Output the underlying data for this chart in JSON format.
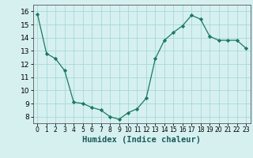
{
  "x": [
    0,
    1,
    2,
    3,
    4,
    5,
    6,
    7,
    8,
    9,
    10,
    11,
    12,
    13,
    14,
    15,
    16,
    17,
    18,
    19,
    20,
    21,
    22,
    23
  ],
  "y": [
    15.8,
    12.8,
    12.4,
    11.5,
    9.1,
    9.0,
    8.7,
    8.5,
    8.0,
    7.8,
    8.3,
    8.6,
    9.4,
    12.4,
    13.8,
    14.4,
    14.9,
    15.7,
    15.4,
    14.1,
    13.8,
    13.8,
    13.8,
    13.2
  ],
  "xlabel": "Humidex (Indice chaleur)",
  "xlim": [
    -0.5,
    23.5
  ],
  "ylim": [
    7.5,
    16.5
  ],
  "yticks": [
    8,
    9,
    10,
    11,
    12,
    13,
    14,
    15,
    16
  ],
  "xtick_labels": [
    "0",
    "1",
    "2",
    "3",
    "4",
    "5",
    "6",
    "7",
    "8",
    "9",
    "10",
    "11",
    "12",
    "13",
    "14",
    "15",
    "16",
    "17",
    "18",
    "19",
    "20",
    "21",
    "22",
    "23"
  ],
  "line_color": "#1a7a5e",
  "marker": "D",
  "marker_size": 2.2,
  "bg_color": "#d6f0f0",
  "grid_color": "#a8d8d8",
  "xlabel_fontsize": 7.5,
  "ytick_fontsize": 6.5,
  "xtick_fontsize": 5.5
}
